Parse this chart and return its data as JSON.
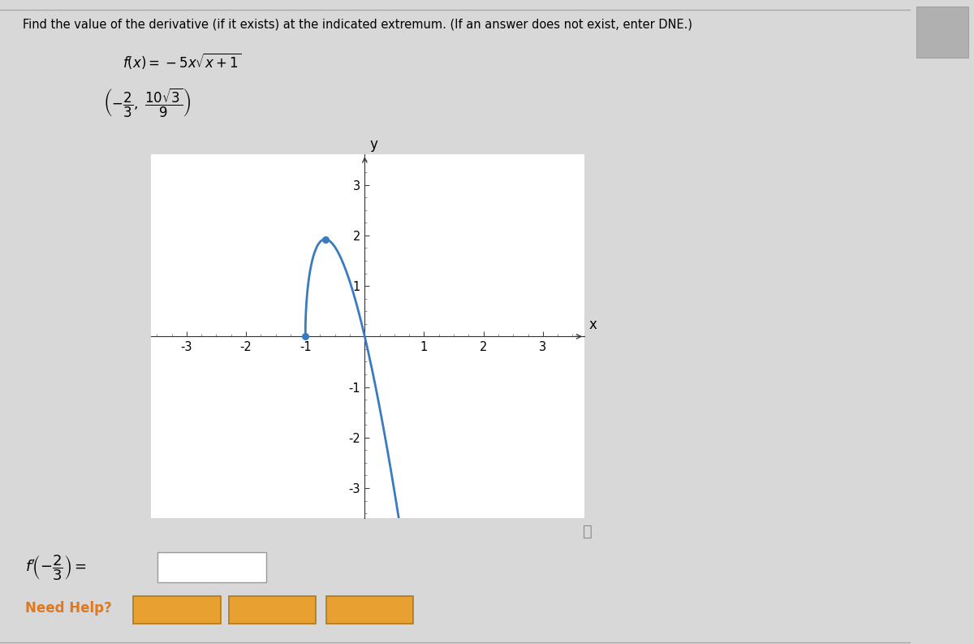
{
  "title": "Find the value of the derivative (if it exists) at the indicated extremum. (If an answer does not exist, enter DNE.)",
  "curve_color": "#3a7abf",
  "dot_color": "#3a7abf",
  "xlim": [
    -3.6,
    3.7
  ],
  "ylim": [
    -3.6,
    3.6
  ],
  "xticks": [
    -3,
    -2,
    -1,
    1,
    2,
    3
  ],
  "yticks": [
    -3,
    -2,
    -1,
    1,
    2,
    3
  ],
  "xlabel": "x",
  "ylabel": "y",
  "need_help_color": "#e07820",
  "button_face": "#e8a030",
  "button_edge": "#b07818",
  "panel_bg": "#ffffff",
  "outer_bg": "#d8d8d8",
  "scrollbar_color": "#b0b0b0"
}
